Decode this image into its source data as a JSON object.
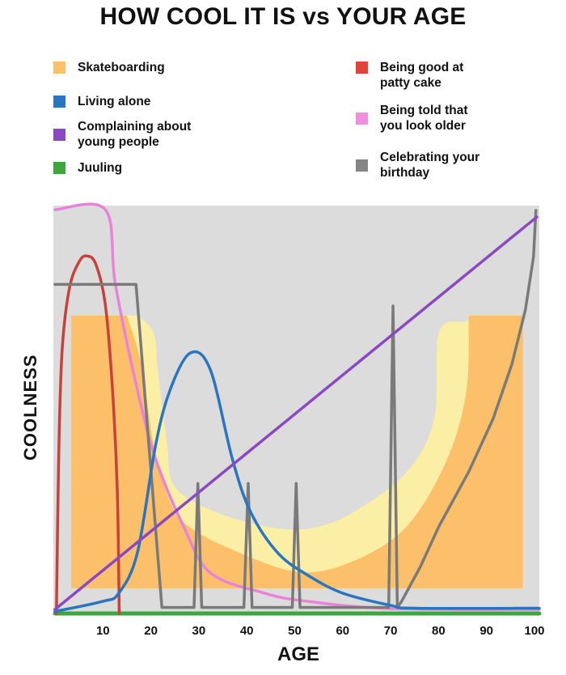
{
  "chart_data": {
    "type": "line",
    "title": "HOW COOL IT IS vs YOUR AGE",
    "xlabel": "AGE",
    "ylabel": "COOLNESS",
    "xlim": [
      0,
      101
    ],
    "ylim": [
      0,
      100
    ],
    "xticks": [
      10,
      20,
      30,
      40,
      50,
      60,
      70,
      80,
      90,
      100
    ],
    "yticks": [],
    "grid": false,
    "background_color": "#dcdcdc",
    "legend_placement": "top",
    "skateboarding_shape": {
      "name": "Skateboarding",
      "color": "#fcc06a",
      "edge_color": "#fbeea5",
      "base": 6.2,
      "left_age": 3.4,
      "right_age": 97.6,
      "top": 73.3,
      "outer_curve": [
        [
          17.2,
          73.3
        ],
        [
          20.6,
          69
        ],
        [
          21.5,
          59.4
        ],
        [
          23.4,
          41.5
        ],
        [
          24.8,
          31.5
        ],
        [
          32.4,
          25.5
        ],
        [
          43.7,
          21.5
        ],
        [
          53,
          20.9
        ],
        [
          62.2,
          24.9
        ],
        [
          73.4,
          34.9
        ],
        [
          79.1,
          48
        ],
        [
          80.1,
          69.3
        ],
        [
          85.8,
          71.9
        ],
        [
          86.3,
          73.3
        ]
      ],
      "inner_curve": [
        [
          15,
          73.3
        ],
        [
          18,
          61.4
        ],
        [
          20.6,
          41.4
        ],
        [
          24,
          27.5
        ],
        [
          27.8,
          21.5
        ],
        [
          37.4,
          15.5
        ],
        [
          50.9,
          10.2
        ],
        [
          62.2,
          12.9
        ],
        [
          73.4,
          21.5
        ],
        [
          81.8,
          38
        ],
        [
          85.8,
          54.8
        ],
        [
          86.3,
          73.3
        ]
      ]
    },
    "series": [
      {
        "name": "Juuling",
        "color": "#3aa83a",
        "line_shape": "linear",
        "points": [
          [
            0,
            0
          ],
          [
            101,
            0
          ]
        ]
      },
      {
        "name": "Being told that you look older",
        "color": "#e884d8",
        "line_shape": "spline",
        "points": [
          [
            0,
            99.4
          ],
          [
            10.5,
            99.4
          ],
          [
            12.6,
            81
          ],
          [
            17.2,
            55
          ],
          [
            21,
            38
          ],
          [
            26.8,
            21.5
          ],
          [
            32.4,
            10
          ],
          [
            43.7,
            5
          ],
          [
            52.6,
            3
          ],
          [
            70,
            1.2
          ],
          [
            101,
            1
          ]
        ]
      },
      {
        "name": "Being good at patty cake",
        "color": "#c8413a",
        "line_shape": "spline",
        "points": [
          [
            0.3,
            0
          ],
          [
            0.8,
            40
          ],
          [
            1.5,
            65
          ],
          [
            3,
            80
          ],
          [
            5,
            86.5
          ],
          [
            6.6,
            88
          ],
          [
            8.5,
            86
          ],
          [
            10.5,
            76
          ],
          [
            12,
            55
          ],
          [
            13,
            30
          ],
          [
            13.4,
            0
          ]
        ]
      },
      {
        "name": "Celebrating your birthday",
        "color": "#7a7a7a",
        "line_shape": "linear",
        "points": [
          [
            0,
            81
          ],
          [
            16.9,
            81
          ],
          [
            22.3,
            1.5
          ],
          [
            29,
            1.5
          ],
          [
            29.8,
            32
          ],
          [
            30.6,
            1.5
          ],
          [
            39.4,
            1.5
          ],
          [
            40.3,
            32
          ],
          [
            41.1,
            1.5
          ],
          [
            49.5,
            1.5
          ],
          [
            50.3,
            32
          ],
          [
            51.1,
            1.5
          ],
          [
            69.6,
            1.5
          ],
          [
            70.5,
            75.7
          ],
          [
            71.4,
            1.5
          ],
          [
            72.3,
            3
          ],
          [
            76.2,
            11.5
          ],
          [
            80.1,
            21.5
          ],
          [
            86.3,
            34.9
          ],
          [
            91.4,
            48
          ],
          [
            95.3,
            61.4
          ],
          [
            98.1,
            74.7
          ],
          [
            99.8,
            87.8
          ],
          [
            100.3,
            99.2
          ]
        ]
      },
      {
        "name": "Living alone",
        "color": "#2a75c0",
        "line_shape": "spline",
        "points": [
          [
            0,
            0.5
          ],
          [
            10,
            3
          ],
          [
            13.3,
            5
          ],
          [
            17.2,
            15
          ],
          [
            21,
            41.5
          ],
          [
            24,
            55
          ],
          [
            28.2,
            64.1
          ],
          [
            32.4,
            60
          ],
          [
            37,
            38
          ],
          [
            40.8,
            25
          ],
          [
            46.4,
            15
          ],
          [
            52.6,
            9.5
          ],
          [
            60,
            5
          ],
          [
            70,
            2
          ],
          [
            75,
            1.3
          ],
          [
            101,
            1.3
          ]
        ]
      },
      {
        "name": "Complaining about young people",
        "color": "#8b48c4",
        "line_shape": "linear",
        "points": [
          [
            0,
            1
          ],
          [
            100.5,
            97.6
          ]
        ]
      }
    ],
    "legend": [
      {
        "label": "Skateboarding",
        "color": "#fcc06a"
      },
      {
        "label": "Living alone",
        "color": "#2a75c0"
      },
      {
        "label": "Complaining about young people",
        "color": "#8b48c4"
      },
      {
        "label": "Juuling",
        "color": "#3aa83a"
      },
      {
        "label": "Being good at patty cake",
        "color": "#e0433a"
      },
      {
        "label": "Being told that you look older",
        "color": "#f08ee0"
      },
      {
        "label": "Celebrating your birthday",
        "color": "#858585"
      }
    ]
  }
}
